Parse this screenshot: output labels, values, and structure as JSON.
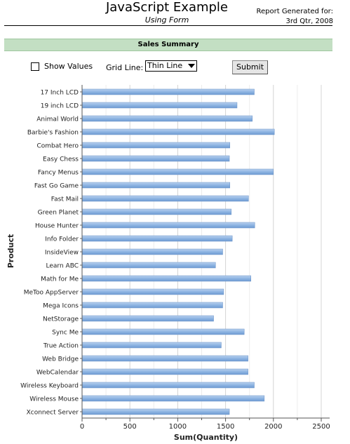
{
  "header": {
    "title": "JavaScript Example",
    "subtitle": "Using Form",
    "report_line1": "Report Generated for:",
    "report_line2": "3rd Qtr, 2008"
  },
  "section": {
    "title": "Sales Summary"
  },
  "form": {
    "show_values_label": "Show Values",
    "show_values_checked": false,
    "grid_line_label": "Grid Line:",
    "grid_line_value": "Thin Line",
    "submit_label": "Submit"
  },
  "chart_data": {
    "type": "bar",
    "orientation": "horizontal",
    "xlabel": "Sum(Quantity)",
    "ylabel": "Product",
    "xlim": [
      0,
      2500
    ],
    "xticks": [
      0,
      500,
      1000,
      1500,
      2000,
      2500
    ],
    "grid": true,
    "bar_color": "#8db4e2",
    "categories": [
      "17 Inch LCD",
      "19 inch LCD",
      "Animal World",
      "Barbie's Fashion",
      "Combat Hero",
      "Easy Chess",
      "Fancy Menus",
      "Fast Go Game",
      "Fast Mail",
      "Green Planet",
      "House Hunter",
      "Info Folder",
      "InsideView",
      "Learn ABC",
      "Math for Me",
      "MeToo AppServer",
      "Mega Icons",
      "NetStorage",
      "Sync Me",
      "True Action",
      "Web Bridge",
      "WebCalendar",
      "Wireless Keyboard",
      "Wireless Mouse",
      "Xconnect Server"
    ],
    "values": [
      1800,
      1620,
      1780,
      2010,
      1545,
      1540,
      2000,
      1545,
      1740,
      1560,
      1805,
      1570,
      1470,
      1395,
      1765,
      1480,
      1470,
      1375,
      1695,
      1455,
      1735,
      1735,
      1800,
      1905,
      1540
    ]
  }
}
